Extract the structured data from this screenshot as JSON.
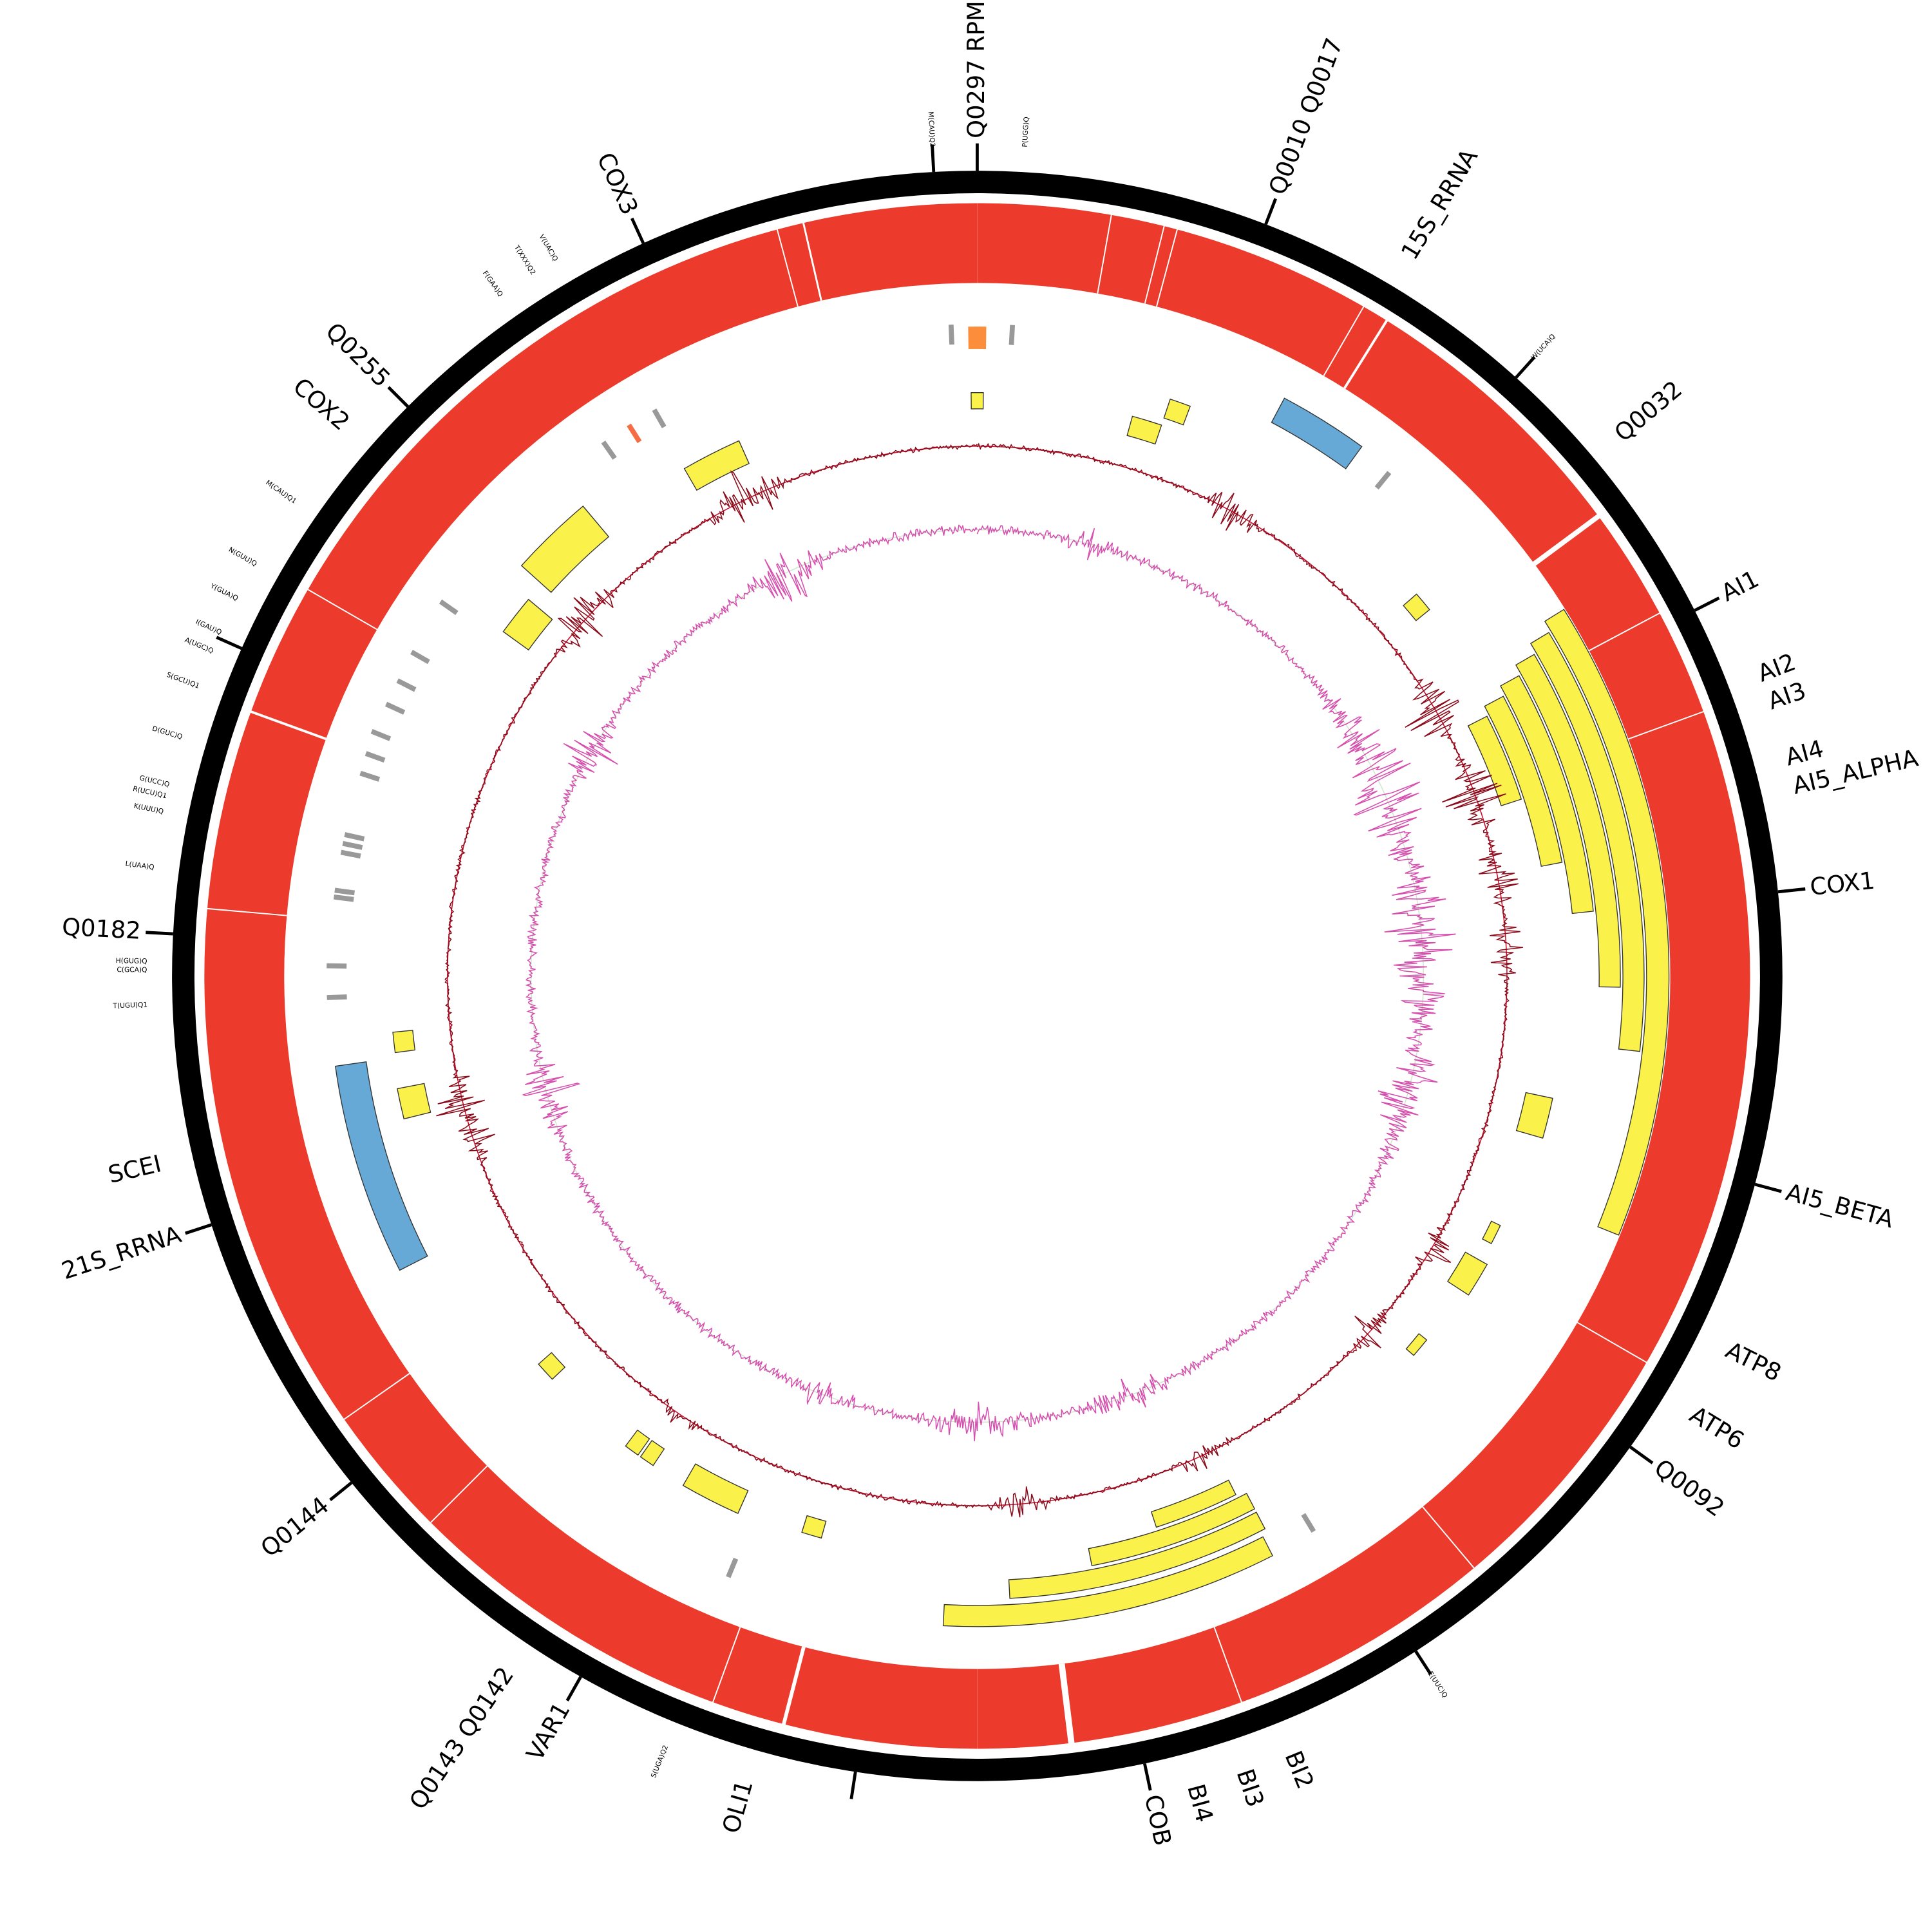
{
  "gene_labels": [
    "Q0297 RPM1",
    "Q0010 Q0017",
    "15S_RRNA",
    "Q0032",
    "AI1",
    "AI2",
    "AI3",
    "AI4",
    "AI5_ALPHA",
    "COX1",
    "AI5_BETA",
    "ATP8",
    "ATP6",
    "Q0092",
    "BI2",
    "BI3",
    "BI4",
    "COB",
    "OLI1",
    "VAR1",
    "Q0143 Q0142",
    "Q0144",
    "21S_RRNA",
    "SCEI",
    "Q0182",
    "COX2",
    "Q0255",
    "COX3"
  ],
  "trna_labels": [
    "M(CAU)Q2",
    "P(UGG)Q",
    "W(UCA)Q",
    "E(UUC)Q",
    "S(UGA)Q2",
    "T(UGU)Q1",
    "C(GCA)Q",
    "H(GUG)Q",
    "L(UAA)Q",
    "K(UUU)Q",
    "R(UCU)Q1",
    "G(UCC)Q",
    "D(GUC)Q",
    "S(GCU)Q1",
    "A(UGC)Q",
    "I(GAU)Q",
    "Y(GUA)Q",
    "N(GUU)Q",
    "M(CAU)Q1",
    "F(GAA)Q",
    "T(XXX)Q2",
    "V(UAC)Q"
  ]
}
